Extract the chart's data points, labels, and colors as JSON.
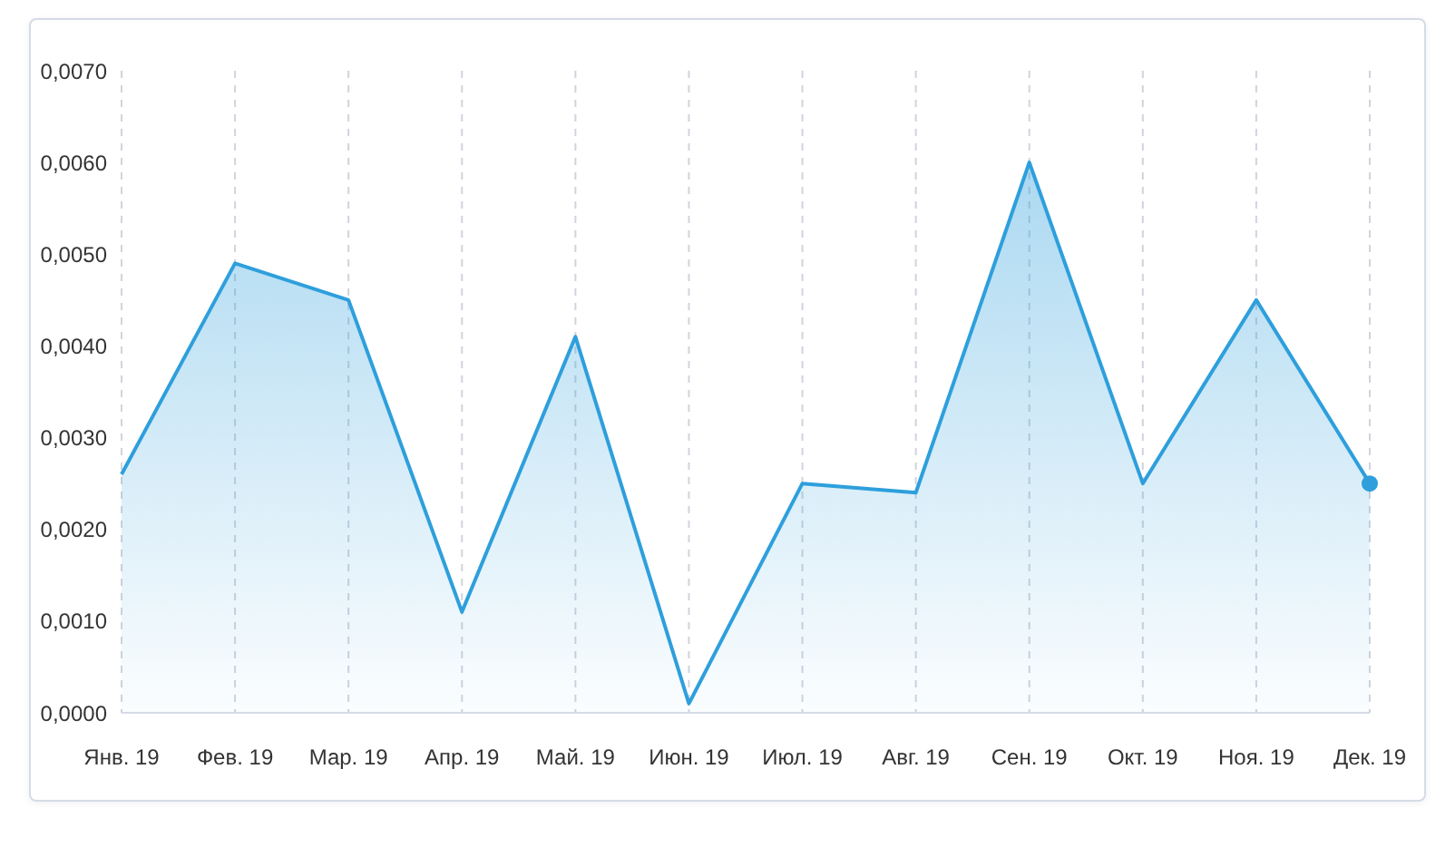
{
  "chart_data": {
    "type": "area",
    "categories": [
      "Янв. 19",
      "Фев. 19",
      "Мар. 19",
      "Апр. 19",
      "Май. 19",
      "Июн. 19",
      "Июл. 19",
      "Авг. 19",
      "Сен. 19",
      "Окт. 19",
      "Ноя. 19",
      "Дек. 19"
    ],
    "series": [
      {
        "color": "#2e9fdc",
        "values": [
          0.0026,
          0.0049,
          0.0045,
          0.0011,
          0.0041,
          0.0001,
          0.0025,
          0.0024,
          0.006,
          0.0025,
          0.0045,
          0.0025
        ]
      }
    ],
    "ylim": [
      0,
      0.007
    ],
    "yticks": [
      {
        "value": 0,
        "label": "0,0000"
      },
      {
        "value": 0.001,
        "label": "0,0010"
      },
      {
        "value": 0.002,
        "label": "0,0020"
      },
      {
        "value": 0.003,
        "label": "0,0030"
      },
      {
        "value": 0.004,
        "label": "0,0040"
      },
      {
        "value": 0.005,
        "label": "0,0050"
      },
      {
        "value": 0.006,
        "label": "0,0060"
      },
      {
        "value": 0.007,
        "label": "0,0070"
      }
    ],
    "grid": "x",
    "legend": false
  }
}
